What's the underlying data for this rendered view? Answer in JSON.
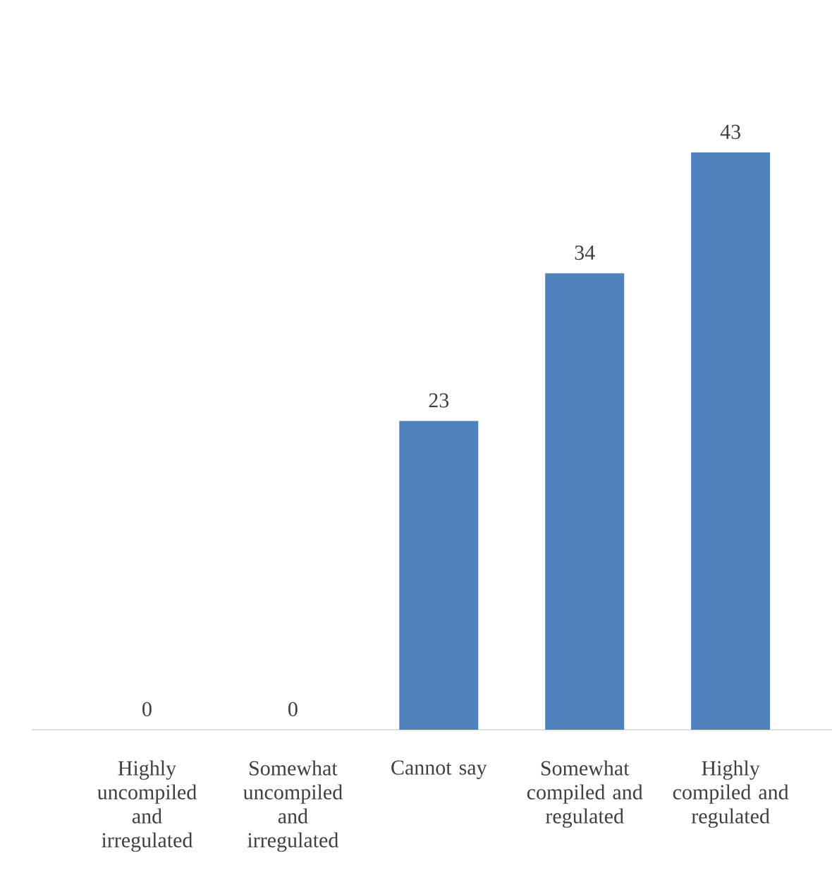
{
  "chart_data": {
    "type": "bar",
    "categories": [
      "Highly uncompiled and irregulated",
      "Somewhat uncompiled and irregulated",
      "Cannot say",
      "Somewhat compiled and regulated",
      "Highly compiled and regulated"
    ],
    "values": [
      0,
      0,
      23,
      34,
      43
    ],
    "color": "#4f81bd",
    "data_labels": true
  }
}
